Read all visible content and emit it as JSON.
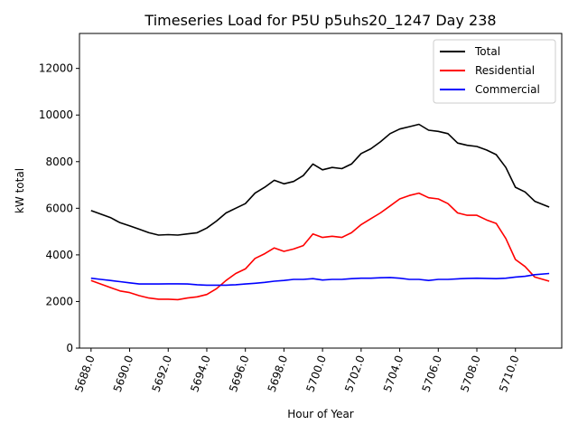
{
  "chart_data": {
    "type": "line",
    "title": "Timeseries Load for P5U p5uhs20_1247  Day 238",
    "xlabel": "Hour of Year",
    "ylabel": "kW total",
    "xlim": [
      5687.4,
      5712.4
    ],
    "ylim": [
      0,
      13500
    ],
    "xticks": [
      5688,
      5690,
      5692,
      5694,
      5696,
      5698,
      5700,
      5702,
      5704,
      5706,
      5708,
      5710
    ],
    "xtick_labels": [
      "5688.0",
      "5690.0",
      "5692.0",
      "5694.0",
      "5696.0",
      "5698.0",
      "5700.0",
      "5702.0",
      "5704.0",
      "5706.0",
      "5708.0",
      "5710.0"
    ],
    "yticks": [
      0,
      2000,
      4000,
      6000,
      8000,
      10000,
      12000
    ],
    "ytick_labels": [
      "0",
      "2000",
      "4000",
      "6000",
      "8000",
      "10000",
      "12000"
    ],
    "grid": false,
    "legend_position": "top-right",
    "x": [
      5688.0,
      5688.5,
      5689.0,
      5689.5,
      5690.0,
      5690.5,
      5691.0,
      5691.5,
      5692.0,
      5692.5,
      5693.0,
      5693.5,
      5694.0,
      5694.5,
      5695.0,
      5695.5,
      5696.0,
      5696.5,
      5697.0,
      5697.5,
      5698.0,
      5698.5,
      5699.0,
      5699.5,
      5700.0,
      5700.5,
      5701.0,
      5701.5,
      5702.0,
      5702.5,
      5703.0,
      5703.5,
      5704.0,
      5704.5,
      5705.0,
      5705.5,
      5706.0,
      5706.5,
      5707.0,
      5707.5,
      5708.0,
      5708.5,
      5709.0,
      5709.5,
      5710.0,
      5710.5,
      5711.0,
      5711.75
    ],
    "series": [
      {
        "name": "Total",
        "color": "#000000",
        "values": [
          5900,
          5750,
          5600,
          5380,
          5250,
          5100,
          4950,
          4850,
          4870,
          4850,
          4900,
          4950,
          5150,
          5450,
          5800,
          6000,
          6200,
          6650,
          6900,
          7200,
          7050,
          7150,
          7400,
          7900,
          7650,
          7750,
          7700,
          7900,
          8350,
          8550,
          8850,
          9200,
          9400,
          9500,
          9600,
          9350,
          9300,
          9200,
          8800,
          8700,
          8650,
          8500,
          8300,
          7750,
          6900,
          6700,
          6300,
          6050
        ]
      },
      {
        "name": "Residential",
        "color": "#ff0000",
        "values": [
          2900,
          2750,
          2600,
          2450,
          2380,
          2250,
          2150,
          2100,
          2100,
          2080,
          2150,
          2200,
          2300,
          2550,
          2900,
          3200,
          3400,
          3850,
          4050,
          4300,
          4150,
          4250,
          4400,
          4900,
          4750,
          4800,
          4750,
          4950,
          5300,
          5550,
          5800,
          6100,
          6400,
          6550,
          6650,
          6450,
          6400,
          6200,
          5800,
          5700,
          5700,
          5500,
          5350,
          4700,
          3800,
          3500,
          3050,
          2870
        ]
      },
      {
        "name": "Commercial",
        "color": "#0000ff",
        "values": [
          3000,
          2950,
          2900,
          2850,
          2800,
          2750,
          2750,
          2750,
          2760,
          2760,
          2750,
          2720,
          2700,
          2700,
          2700,
          2720,
          2750,
          2780,
          2820,
          2870,
          2900,
          2950,
          2950,
          2980,
          2920,
          2950,
          2950,
          2980,
          3000,
          3000,
          3020,
          3030,
          3000,
          2950,
          2950,
          2900,
          2950,
          2950,
          2970,
          2990,
          3000,
          2990,
          2980,
          3000,
          3050,
          3080,
          3150,
          3200
        ]
      }
    ]
  }
}
